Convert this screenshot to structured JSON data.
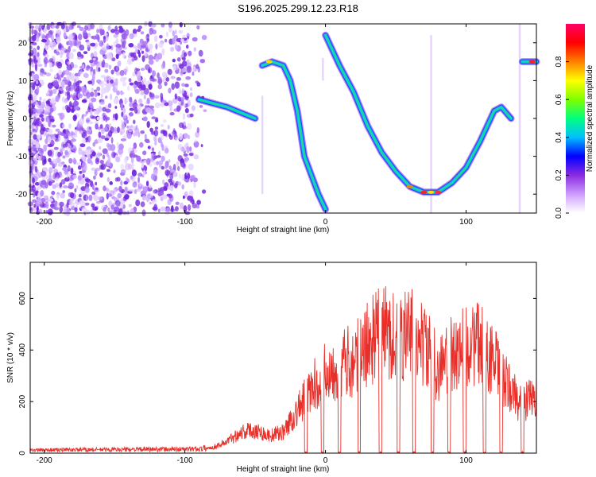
{
  "title": "S196.2025.299.12.23.R18",
  "chart_data": [
    {
      "type": "heatmap",
      "xlabel": "Height of straight line (km)",
      "ylabel": "Frequency (Hz)",
      "xlim": [
        -210,
        150
      ],
      "ylim": [
        -25,
        25
      ],
      "xticks": [
        -200,
        -100,
        0,
        100
      ],
      "yticks": [
        -20,
        -10,
        0,
        10,
        20
      ],
      "colorbar": {
        "label": "Normalized spectral amplitude",
        "range": [
          0,
          1
        ],
        "ticks": [
          "0.0",
          "0.2",
          "0.4",
          "0.6",
          "0.8"
        ],
        "colors": [
          "#ffffff",
          "#d9b3ff",
          "#8a2be2",
          "#0000ff",
          "#00bfff",
          "#00ff7f",
          "#7fff00",
          "#ffff00",
          "#ff8000",
          "#ff0000",
          "#ff0066"
        ]
      },
      "traces": [
        {
          "name": "segment-a",
          "points": [
            [
              -90,
              5
            ],
            [
              -80,
              4
            ],
            [
              -70,
              3
            ],
            [
              -60,
              1.5
            ],
            [
              -50,
              0
            ]
          ]
        },
        {
          "name": "segment-b",
          "points": [
            [
              -45,
              14
            ],
            [
              -38,
              15
            ],
            [
              -30,
              14
            ],
            [
              -25,
              10
            ],
            [
              -20,
              2
            ],
            [
              -15,
              -10
            ],
            [
              -5,
              -20
            ],
            [
              0,
              -24
            ]
          ]
        },
        {
          "name": "segment-c",
          "points": [
            [
              0,
              22
            ],
            [
              10,
              14
            ],
            [
              20,
              7
            ],
            [
              30,
              -2
            ],
            [
              40,
              -9
            ],
            [
              50,
              -14
            ],
            [
              60,
              -18
            ],
            [
              70,
              -19.5
            ],
            [
              80,
              -19.5
            ],
            [
              90,
              -17
            ],
            [
              100,
              -13
            ],
            [
              110,
              -6
            ],
            [
              120,
              2
            ],
            [
              125,
              3
            ],
            [
              132,
              0
            ]
          ]
        },
        {
          "name": "segment-d",
          "points": [
            [
              140,
              15
            ],
            [
              150,
              15
            ]
          ]
        }
      ]
    },
    {
      "type": "line",
      "xlabel": "Height of straight line (km)",
      "ylabel": "SNR (10 * v/v)",
      "xlim": [
        -210,
        150
      ],
      "ylim": [
        0,
        740
      ],
      "xticks": [
        -200,
        -100,
        0,
        100
      ],
      "yticks": [
        0,
        200,
        400,
        600
      ],
      "color": "#e8302a",
      "envelope": [
        [
          -210,
          15
        ],
        [
          -90,
          20
        ],
        [
          -80,
          30
        ],
        [
          -70,
          60
        ],
        [
          -60,
          110
        ],
        [
          -50,
          120
        ],
        [
          -40,
          90
        ],
        [
          -30,
          110
        ],
        [
          -20,
          220
        ],
        [
          -10,
          330
        ],
        [
          0,
          420
        ],
        [
          10,
          460
        ],
        [
          20,
          480
        ],
        [
          30,
          560
        ],
        [
          40,
          640
        ],
        [
          50,
          600
        ],
        [
          60,
          620
        ],
        [
          70,
          560
        ],
        [
          80,
          440
        ],
        [
          90,
          510
        ],
        [
          100,
          560
        ],
        [
          110,
          560
        ],
        [
          120,
          470
        ],
        [
          130,
          340
        ],
        [
          140,
          250
        ],
        [
          150,
          300
        ]
      ],
      "gaps": [
        [
          -15,
          -13
        ],
        [
          -3,
          -1
        ],
        [
          9,
          11
        ],
        [
          23,
          25
        ],
        [
          38,
          40
        ],
        [
          51,
          53
        ],
        [
          62,
          64
        ],
        [
          75,
          77
        ],
        [
          87,
          89
        ],
        [
          98,
          100
        ],
        [
          112,
          114
        ],
        [
          124,
          126
        ],
        [
          139,
          141
        ]
      ]
    }
  ]
}
